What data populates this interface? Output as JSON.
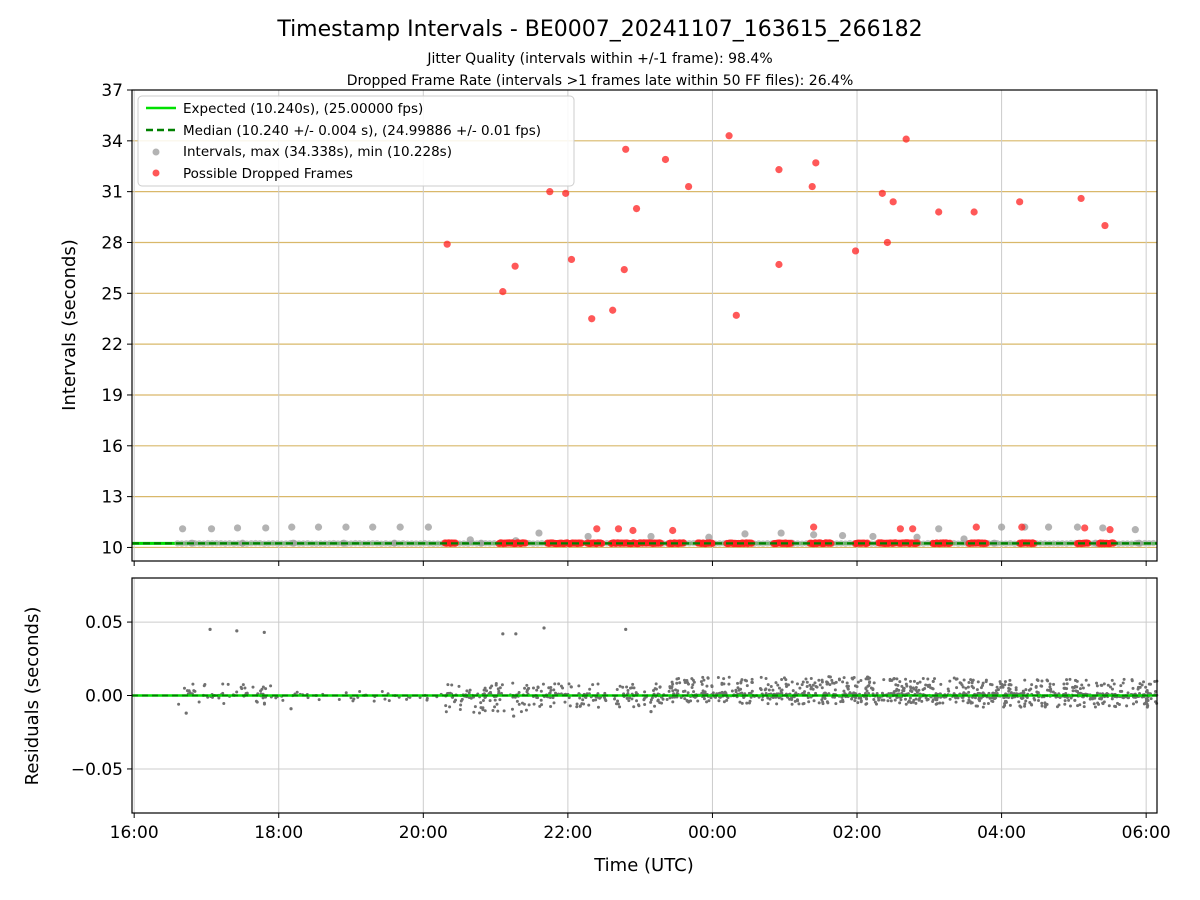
{
  "title": "Timestamp Intervals - BE0007_20241107_163615_266182",
  "subtitle_1": "Jitter Quality (intervals within +/-1 frame): 98.4%",
  "subtitle_2": "Dropped Frame Rate (intervals >1 frames late within 50 FF files): 26.4%",
  "colors": {
    "expected": "#00e000",
    "median": "#008000",
    "intervals": "#a0a0a0",
    "dropped": "#ff2020",
    "residuals": "#707070",
    "hgrid_top": "#d9b86a",
    "grid": "#cccccc"
  },
  "chart_data": [
    {
      "type": "scatter",
      "ylabel": "Intervals (seconds)",
      "ylim": [
        9.2,
        37
      ],
      "y_ticks": [
        10,
        13,
        16,
        19,
        22,
        25,
        28,
        31,
        34,
        37
      ],
      "y_tick_labels": [
        "10",
        "13",
        "16",
        "19",
        "22",
        "25",
        "28",
        "31",
        "34",
        "37"
      ],
      "x_range_hours": [
        15.97,
        30.15
      ],
      "grid": true,
      "legend_position": "top-left",
      "legend": [
        "Expected (10.240s), (25.00000 fps)",
        "Median (10.240 +/- 0.004 s), (24.99886 +/- 0.01 fps)",
        "Intervals, max (34.338s), min (10.228s)",
        "Possible Dropped Frames"
      ],
      "expected_value": 10.24,
      "median_value": 10.24,
      "series": [
        {
          "name": "Intervals, max (34.338s), min (10.228s)",
          "points": [
            [
              16.67,
              11.1
            ],
            [
              17.07,
              11.1
            ],
            [
              17.43,
              11.15
            ],
            [
              17.82,
              11.15
            ],
            [
              18.18,
              11.2
            ],
            [
              18.55,
              11.2
            ],
            [
              18.93,
              11.2
            ],
            [
              19.3,
              11.2
            ],
            [
              19.68,
              11.2
            ],
            [
              20.07,
              11.2
            ],
            [
              20.65,
              10.45
            ],
            [
              21.28,
              10.4
            ],
            [
              21.6,
              10.85
            ],
            [
              22.28,
              10.65
            ],
            [
              23.15,
              10.65
            ],
            [
              23.95,
              10.6
            ],
            [
              24.45,
              10.8
            ],
            [
              24.95,
              10.85
            ],
            [
              25.4,
              10.75
            ],
            [
              25.8,
              10.7
            ],
            [
              26.22,
              10.65
            ],
            [
              26.83,
              10.6
            ],
            [
              27.13,
              11.1
            ],
            [
              27.48,
              10.5
            ],
            [
              28.0,
              11.2
            ],
            [
              28.32,
              11.2
            ],
            [
              28.65,
              11.2
            ],
            [
              29.05,
              11.2
            ],
            [
              29.4,
              11.15
            ],
            [
              29.85,
              11.05
            ],
            [
              16.8,
              10.25
            ],
            [
              17.5,
              10.25
            ],
            [
              18.2,
              10.25
            ],
            [
              18.9,
              10.25
            ],
            [
              19.6,
              10.25
            ],
            [
              20.8,
              10.25
            ],
            [
              21.9,
              10.25
            ],
            [
              23.6,
              10.25
            ],
            [
              25.1,
              10.25
            ],
            [
              26.5,
              10.25
            ],
            [
              27.9,
              10.25
            ],
            [
              29.3,
              10.25
            ],
            [
              29.9,
              10.25
            ]
          ]
        },
        {
          "name": "Possible Dropped Frames",
          "points": [
            [
              20.33,
              27.9
            ],
            [
              21.1,
              25.1
            ],
            [
              21.27,
              26.6
            ],
            [
              21.75,
              31.0
            ],
            [
              21.97,
              30.9
            ],
            [
              22.05,
              27.0
            ],
            [
              22.33,
              23.5
            ],
            [
              22.62,
              24.0
            ],
            [
              22.8,
              33.5
            ],
            [
              22.78,
              26.4
            ],
            [
              22.95,
              30.0
            ],
            [
              23.35,
              32.9
            ],
            [
              23.67,
              31.3
            ],
            [
              24.23,
              34.3
            ],
            [
              24.33,
              23.7
            ],
            [
              24.92,
              32.3
            ],
            [
              24.92,
              26.7
            ],
            [
              25.38,
              31.3
            ],
            [
              25.43,
              32.7
            ],
            [
              25.98,
              27.5
            ],
            [
              26.35,
              30.9
            ],
            [
              26.42,
              28.0
            ],
            [
              26.5,
              30.4
            ],
            [
              26.68,
              34.1
            ],
            [
              27.13,
              29.8
            ],
            [
              27.62,
              29.8
            ],
            [
              28.25,
              30.4
            ],
            [
              29.1,
              30.6
            ],
            [
              29.43,
              29.0
            ],
            [
              22.4,
              11.1
            ],
            [
              22.7,
              11.1
            ],
            [
              22.9,
              11.0
            ],
            [
              23.45,
              11.0
            ],
            [
              25.4,
              11.2
            ],
            [
              26.6,
              11.1
            ],
            [
              26.77,
              11.1
            ],
            [
              27.65,
              11.2
            ],
            [
              28.28,
              11.2
            ],
            [
              29.15,
              11.15
            ],
            [
              29.5,
              11.05
            ]
          ],
          "clusters": [
            [
              20.3,
              20.45
            ],
            [
              21.05,
              21.42
            ],
            [
              21.72,
              22.2
            ],
            [
              22.27,
              22.48
            ],
            [
              22.6,
              23.3
            ],
            [
              23.4,
              23.6
            ],
            [
              23.8,
              24.0
            ],
            [
              24.2,
              24.55
            ],
            [
              24.85,
              25.1
            ],
            [
              25.35,
              25.65
            ],
            [
              25.98,
              26.15
            ],
            [
              26.3,
              26.55
            ],
            [
              26.58,
              26.85
            ],
            [
              27.05,
              27.3
            ],
            [
              27.55,
              27.8
            ],
            [
              28.25,
              28.45
            ],
            [
              29.05,
              29.2
            ],
            [
              29.35,
              29.55
            ]
          ]
        }
      ]
    },
    {
      "type": "scatter",
      "ylabel": "Residuals (seconds)",
      "xlabel": "Time (UTC)",
      "ylim": [
        -0.08,
        0.08
      ],
      "y_ticks": [
        0.05,
        0.0,
        -0.05
      ],
      "y_tick_labels": [
        "0.05",
        "0.00",
        "−0.05"
      ],
      "x_ticks": [
        16,
        18,
        20,
        22,
        24,
        26,
        28,
        30
      ],
      "x_tick_labels": [
        "16:00",
        "18:00",
        "20:00",
        "22:00",
        "00:00",
        "02:00",
        "04:00",
        "06:00"
      ],
      "grid": true,
      "series": [
        {
          "name": "Residuals",
          "outliers": [
            [
              17.05,
              0.045
            ],
            [
              17.42,
              0.044
            ],
            [
              17.8,
              0.043
            ],
            [
              21.1,
              0.042
            ],
            [
              21.28,
              0.042
            ],
            [
              21.67,
              0.046
            ],
            [
              22.8,
              0.045
            ],
            [
              16.72,
              -0.012
            ],
            [
              18.17,
              -0.009
            ],
            [
              23.15,
              -0.011
            ],
            [
              21.25,
              -0.014
            ]
          ],
          "bands": [
            {
              "from": 16.6,
              "to": 17.9,
              "low": -0.006,
              "high": 0.008,
              "count": 60
            },
            {
              "from": 17.9,
              "to": 20.3,
              "low": -0.004,
              "high": 0.004,
              "count": 40
            },
            {
              "from": 20.3,
              "to": 21.5,
              "low": -0.012,
              "high": 0.009,
              "count": 110
            },
            {
              "from": 21.5,
              "to": 23.4,
              "low": -0.008,
              "high": 0.008,
              "count": 150
            },
            {
              "from": 23.4,
              "to": 26.3,
              "low": -0.006,
              "high": 0.013,
              "count": 420
            },
            {
              "from": 26.3,
              "to": 27.6,
              "low": -0.006,
              "high": 0.012,
              "count": 200
            },
            {
              "from": 27.6,
              "to": 30.15,
              "low": -0.008,
              "high": 0.011,
              "count": 400
            }
          ]
        }
      ]
    }
  ]
}
